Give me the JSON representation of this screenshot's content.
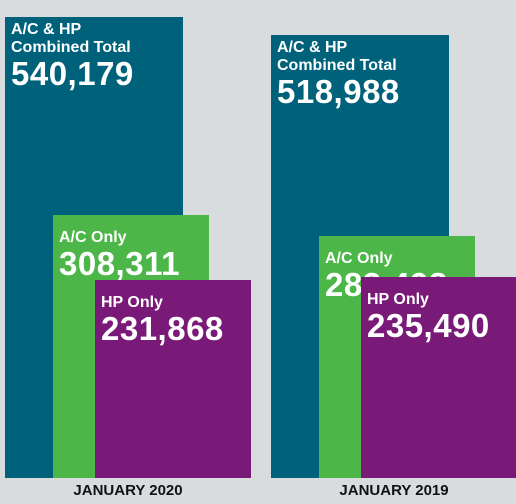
{
  "chart_data": {
    "type": "bar",
    "categories": [
      "JANUARY 2020",
      "JANUARY 2019"
    ],
    "series": [
      {
        "name": "A/C & HP Combined Total",
        "color": "#00627a",
        "values": [
          540179,
          518988
        ],
        "value_labels": [
          "540,179",
          "518,988"
        ]
      },
      {
        "name": "A/C Only",
        "color": "#4cb748",
        "values": [
          308311,
          283498
        ],
        "value_labels": [
          "308,311",
          "283,498"
        ]
      },
      {
        "name": "HP Only",
        "color": "#7a1a78",
        "values": [
          231868,
          235490
        ],
        "value_labels": [
          "231,868",
          "235,490"
        ]
      }
    ],
    "ylim": [
      0,
      560000
    ]
  }
}
